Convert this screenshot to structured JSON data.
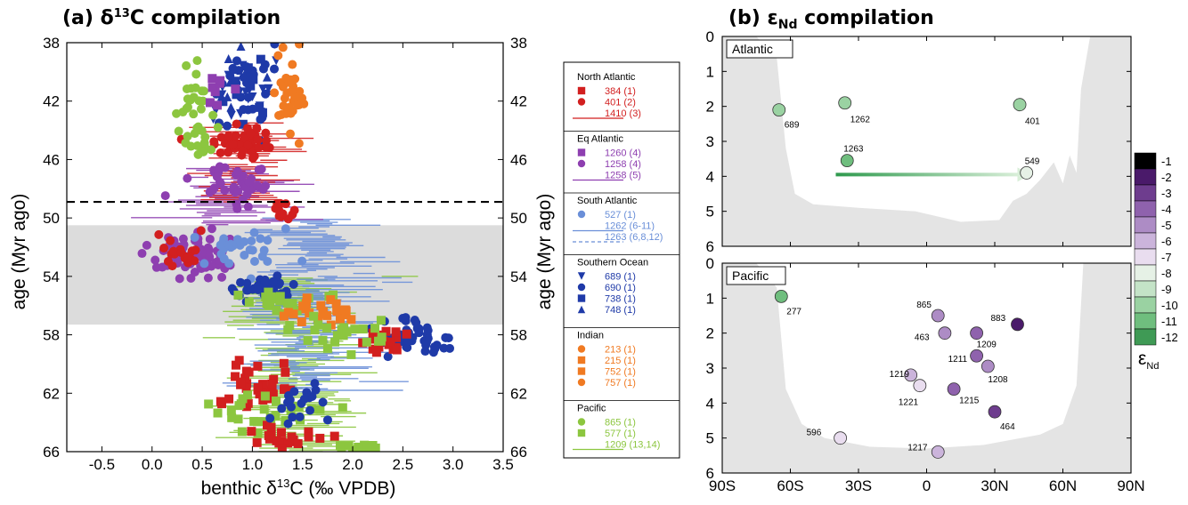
{
  "chart_data": [
    {
      "type": "scatter",
      "title": "(a) δ13C compilation",
      "xlabel": "benthic δ13C (‰ VPDB)",
      "ylabel": "age (Myr ago)",
      "xlim": [
        -0.85,
        3.5
      ],
      "ylim": [
        66,
        38
      ],
      "x_ticks": [
        "-0.5",
        "0.0",
        "0.5",
        "1.0",
        "1.5",
        "2.0",
        "2.5",
        "3.0",
        "3.5"
      ],
      "y_ticks": [
        "38",
        "42",
        "46",
        "50",
        "54",
        "58",
        "62",
        "66"
      ],
      "shaded_band": [
        50.5,
        57.3
      ],
      "dashed_line_age": 48.9,
      "legend": [
        {
          "group": "North Atlantic",
          "color": "#d21f1f",
          "entries": [
            {
              "marker": "square",
              "label": "384 (1)"
            },
            {
              "marker": "circle",
              "label": "401 (2)"
            },
            {
              "marker": "line",
              "label": "1410 (3)"
            }
          ]
        },
        {
          "group": "Eq Atlantic",
          "color": "#8e3fb0",
          "entries": [
            {
              "marker": "square",
              "label": "1260 (4)"
            },
            {
              "marker": "circle",
              "label": "1258 (4)"
            },
            {
              "marker": "line",
              "label": "1258 (5)"
            }
          ]
        },
        {
          "group": "South Atlantic",
          "color": "#6a8fd8",
          "entries": [
            {
              "marker": "circle",
              "label": "527 (1)"
            },
            {
              "marker": "line",
              "label": "1262 (6-11)"
            },
            {
              "marker": "dashed",
              "label": "1263 (6,8,12)"
            }
          ]
        },
        {
          "group": "Southern Ocean",
          "color": "#1f3aa8",
          "entries": [
            {
              "marker": "triangle-down",
              "label": "689 (1)"
            },
            {
              "marker": "circle",
              "label": "690 (1)"
            },
            {
              "marker": "square",
              "label": "738 (1)"
            },
            {
              "marker": "triangle-up",
              "label": "748 (1)"
            }
          ]
        },
        {
          "group": "Indian",
          "color": "#f07a22",
          "entries": [
            {
              "marker": "circle",
              "label": "213 (1)"
            },
            {
              "marker": "square",
              "label": "215 (1)"
            },
            {
              "marker": "square",
              "label": "752 (1)"
            },
            {
              "marker": "circle",
              "label": "757 (1)"
            }
          ]
        },
        {
          "group": "Pacific",
          "color": "#8cc63f",
          "entries": [
            {
              "marker": "circle",
              "label": "865 (1)"
            },
            {
              "marker": "square",
              "label": "577 (1)"
            },
            {
              "marker": "line",
              "label": "1209 (13,14)"
            }
          ]
        }
      ],
      "point_clusters": [
        {
          "name": "Southern Ocean",
          "color": "#1f3aa8",
          "marker": "circle",
          "cx": 0.95,
          "cy": 41.0,
          "sx": 0.25,
          "sy": 2.2,
          "n": 70
        },
        {
          "name": "Pacific",
          "color": "#8cc63f",
          "marker": "circle",
          "cx": 0.45,
          "cy": 41.5,
          "sx": 0.15,
          "sy": 2.2,
          "n": 22
        },
        {
          "name": "Indian",
          "color": "#f07a22",
          "marker": "circle",
          "cx": 1.35,
          "cy": 42.0,
          "sx": 0.12,
          "sy": 2.8,
          "n": 35
        },
        {
          "name": "Eq Atlantic",
          "color": "#8e3fb0",
          "marker": "square",
          "cx": 0.65,
          "cy": 41.0,
          "sx": 0.15,
          "sy": 1.5,
          "n": 8
        },
        {
          "name": "North Atlantic",
          "color": "#d21f1f",
          "marker": "circle",
          "cx": 0.9,
          "cy": 44.8,
          "sx": 0.25,
          "sy": 0.9,
          "n": 55
        },
        {
          "name": "Pacific",
          "color": "#8cc63f",
          "marker": "circle",
          "cx": 0.45,
          "cy": 45.0,
          "sx": 0.15,
          "sy": 1.2,
          "n": 15
        },
        {
          "name": "Eq Atlantic",
          "color": "#8e3fb0",
          "marker": "circle",
          "cx": 0.8,
          "cy": 47.8,
          "sx": 0.35,
          "sy": 1.3,
          "n": 40
        },
        {
          "name": "North Atlantic",
          "color": "#d21f1f",
          "marker": "circle",
          "cx": 1.3,
          "cy": 49.5,
          "sx": 0.15,
          "sy": 0.6,
          "n": 12
        },
        {
          "name": "Eq Atlantic",
          "color": "#8e3fb0",
          "marker": "circle",
          "cx": 0.45,
          "cy": 52.5,
          "sx": 0.35,
          "sy": 1.2,
          "n": 80
        },
        {
          "name": "North Atlantic",
          "color": "#d21f1f",
          "marker": "circle",
          "cx": 0.25,
          "cy": 52.5,
          "sx": 0.2,
          "sy": 1.1,
          "n": 20
        },
        {
          "name": "South Atlantic",
          "color": "#6a8fd8",
          "marker": "circle",
          "cx": 0.9,
          "cy": 52.2,
          "sx": 0.35,
          "sy": 1.2,
          "n": 30
        },
        {
          "name": "Southern Ocean",
          "color": "#1f3aa8",
          "marker": "circle",
          "cx": 1.15,
          "cy": 54.8,
          "sx": 0.25,
          "sy": 0.6,
          "n": 40
        },
        {
          "name": "Pacific",
          "color": "#8cc63f",
          "marker": "square",
          "cx": 1.3,
          "cy": 55.6,
          "sx": 0.35,
          "sy": 0.6,
          "n": 25
        },
        {
          "name": "Indian",
          "color": "#f07a22",
          "marker": "square",
          "cx": 1.7,
          "cy": 56.5,
          "sx": 0.3,
          "sy": 0.7,
          "n": 25
        },
        {
          "name": "Southern Ocean",
          "color": "#1f3aa8",
          "marker": "circle",
          "cx": 2.6,
          "cy": 58.0,
          "sx": 0.35,
          "sy": 1.0,
          "n": 45
        },
        {
          "name": "North Atlantic",
          "color": "#d21f1f",
          "marker": "square",
          "cx": 2.3,
          "cy": 58.3,
          "sx": 0.2,
          "sy": 0.7,
          "n": 20
        },
        {
          "name": "Pacific",
          "color": "#8cc63f",
          "marker": "square",
          "cx": 2.0,
          "cy": 58.0,
          "sx": 0.4,
          "sy": 1.0,
          "n": 25
        },
        {
          "name": "North Atlantic",
          "color": "#d21f1f",
          "marker": "square",
          "cx": 1.0,
          "cy": 61.5,
          "sx": 0.35,
          "sy": 1.3,
          "n": 35
        },
        {
          "name": "Pacific",
          "color": "#8cc63f",
          "marker": "square",
          "cx": 1.2,
          "cy": 63.5,
          "sx": 0.45,
          "sy": 1.5,
          "n": 30
        },
        {
          "name": "North Atlantic",
          "color": "#d21f1f",
          "marker": "square",
          "cx": 1.3,
          "cy": 65.0,
          "sx": 0.3,
          "sy": 0.6,
          "n": 22
        },
        {
          "name": "Pacific",
          "color": "#8cc63f",
          "marker": "square",
          "cx": 2.05,
          "cy": 65.7,
          "sx": 0.2,
          "sy": 0.2,
          "n": 14
        },
        {
          "name": "Southern Ocean",
          "color": "#1f3aa8",
          "marker": "circle",
          "cx": 1.5,
          "cy": 62.5,
          "sx": 0.25,
          "sy": 1.5,
          "n": 20
        }
      ],
      "line_series": [
        {
          "name": "1209 (13,14)",
          "color": "#8cc63f",
          "cx": 1.4,
          "from": 54,
          "to": 66,
          "sx": 0.55,
          "step": 0.12
        },
        {
          "name": "1262 (6-11)",
          "color": "#6a8fd8",
          "cx": 1.55,
          "from": 50,
          "to": 62,
          "sx": 0.6,
          "step": 0.1
        },
        {
          "name": "1258 (5)",
          "color": "#8e3fb0",
          "cx": 0.75,
          "from": 46.5,
          "to": 50.5,
          "sx": 0.45,
          "step": 0.12
        },
        {
          "name": "1410 (3)",
          "color": "#d21f1f",
          "cx": 0.95,
          "from": 43.5,
          "to": 49,
          "sx": 0.3,
          "step": 0.15
        }
      ]
    },
    {
      "type": "scatter",
      "title": "(b) εNd compilation",
      "title_main": "(b) ε",
      "title_sub": "Nd",
      "title_tail": " compilation",
      "xlim": [
        -90,
        90
      ],
      "ylim": [
        6,
        0
      ],
      "x_ticks": [
        "90S",
        "60S",
        "30S",
        "0",
        "30N",
        "60N",
        "90N"
      ],
      "y_ticks": [
        "0",
        "1",
        "2",
        "3",
        "4",
        "5",
        "6"
      ],
      "colorbar": {
        "label_main": "ε",
        "label_sub": "Nd",
        "values": [
          -1,
          -2,
          -3,
          -4,
          -5,
          -6,
          -7,
          -8,
          -9,
          -10,
          -11,
          -12
        ],
        "colors": [
          "#000000",
          "#4a1a6a",
          "#6e3d8e",
          "#8f62ad",
          "#ad8cc5",
          "#cbb4db",
          "#e9ddef",
          "#e6f1e6",
          "#c4e3c7",
          "#9ad2a2",
          "#6fbe7e",
          "#3f9a55"
        ]
      },
      "panels": [
        {
          "ocean": "Atlantic",
          "sites": [
            {
              "id": "689",
              "lat": -65,
              "depth": 2.1,
              "eps": -10
            },
            {
              "id": "1262",
              "lat": -36,
              "depth": 1.9,
              "eps": -10
            },
            {
              "id": "401",
              "lat": 41,
              "depth": 1.95,
              "eps": -10
            },
            {
              "id": "1263",
              "lat": -35,
              "depth": 3.55,
              "eps": -11
            },
            {
              "id": "549",
              "lat": 44,
              "depth": 3.9,
              "eps": -8
            }
          ],
          "arrow": {
            "from_lat": -40,
            "to_lat": 40,
            "depth": 3.95
          }
        },
        {
          "ocean": "Pacific",
          "sites": [
            {
              "id": "277",
              "lat": -64,
              "depth": 0.95,
              "eps": -11
            },
            {
              "id": "865",
              "lat": 5,
              "depth": 1.5,
              "eps": -5
            },
            {
              "id": "883",
              "lat": 40,
              "depth": 1.75,
              "eps": -2
            },
            {
              "id": "463",
              "lat": 8,
              "depth": 2.0,
              "eps": -5
            },
            {
              "id": "1209",
              "lat": 22,
              "depth": 2.0,
              "eps": -4
            },
            {
              "id": "1211",
              "lat": 22,
              "depth": 2.65,
              "eps": -4
            },
            {
              "id": "1208",
              "lat": 27,
              "depth": 2.95,
              "eps": -5
            },
            {
              "id": "1219",
              "lat": -7,
              "depth": 3.2,
              "eps": -6
            },
            {
              "id": "1221",
              "lat": -3,
              "depth": 3.5,
              "eps": -7
            },
            {
              "id": "1215",
              "lat": 12,
              "depth": 3.6,
              "eps": -4
            },
            {
              "id": "464",
              "lat": 30,
              "depth": 4.25,
              "eps": -3
            },
            {
              "id": "596",
              "lat": -38,
              "depth": 5.0,
              "eps": -7
            },
            {
              "id": "1217",
              "lat": 5,
              "depth": 5.4,
              "eps": -6
            }
          ]
        }
      ]
    }
  ]
}
